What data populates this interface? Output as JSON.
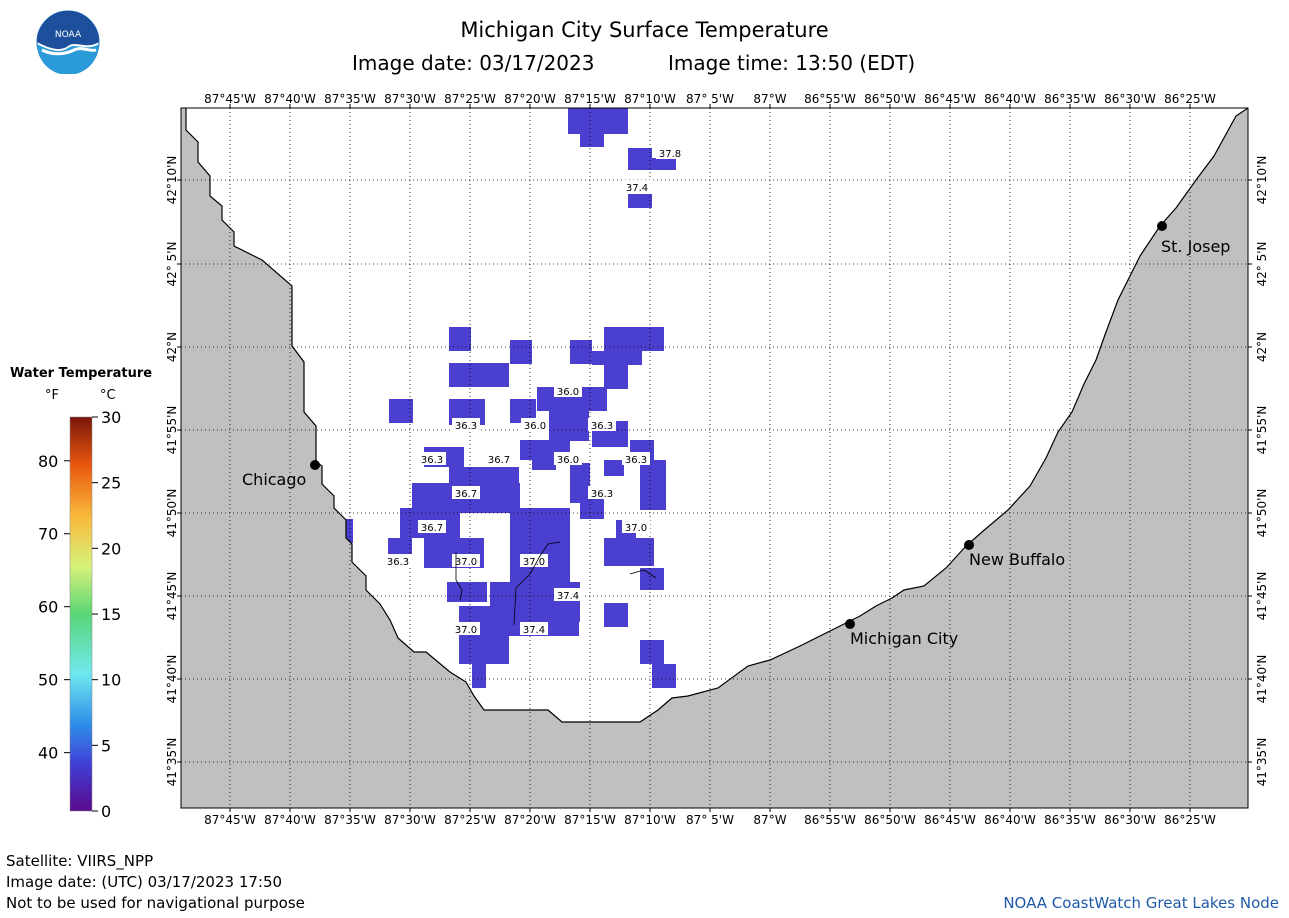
{
  "header": {
    "title": "Michigan City Surface Temperature",
    "image_date": "Image date: 03/17/2023",
    "image_time": "Image time: 13:50 (EDT)"
  },
  "logo": {
    "text": "NOAA",
    "icon": "noaa-logo-icon"
  },
  "legend": {
    "title": "Water Temperature",
    "unit_f": "°F",
    "unit_c": "°C",
    "f_ticks": [
      "80",
      "70",
      "60",
      "50",
      "40"
    ],
    "c_ticks": [
      "30",
      "25",
      "20",
      "15",
      "10",
      "5",
      "0"
    ]
  },
  "map": {
    "lon_labels": [
      "87°45'W",
      "87°40'W",
      "87°35'W",
      "87°30'W",
      "87°25'W",
      "87°20'W",
      "87°15'W",
      "87°10'W",
      "87° 5'W",
      "87°W",
      "86°55'W",
      "86°50'W",
      "86°45'W",
      "86°40'W",
      "86°35'W",
      "86°30'W",
      "86°25'W"
    ],
    "lat_labels": [
      "42°10'N",
      "42° 5'N",
      "42°N",
      "41°55'N",
      "41°50'N",
      "41°45'N",
      "41°40'N",
      "41°35'N"
    ],
    "cities": [
      {
        "name": "Chicago"
      },
      {
        "name": "St. Josep"
      },
      {
        "name": "New Buffalo"
      },
      {
        "name": "Michigan City"
      }
    ],
    "temp_labels": [
      "37.8",
      "37.4",
      "36.0",
      "36.3",
      "36.0",
      "36.3",
      "36.3",
      "36.7",
      "36.0",
      "36.3",
      "36.7",
      "36.3",
      "36.7",
      "37.0",
      "36.3",
      "37.0",
      "37.0",
      "37.4",
      "37.0",
      "37.4"
    ]
  },
  "footer": {
    "satellite": "Satellite: VIIRS_NPP",
    "image_date_utc": "Image date: (UTC) 03/17/2023  17:50",
    "disclaimer": "Not to be used for navigational purpose",
    "credit": "NOAA CoastWatch Great Lakes Node"
  },
  "colors": {
    "land": "#c0c0c0",
    "water": "#ffffff",
    "sst_cells": "#4b3fcf",
    "credit": "#1f5aa8"
  }
}
